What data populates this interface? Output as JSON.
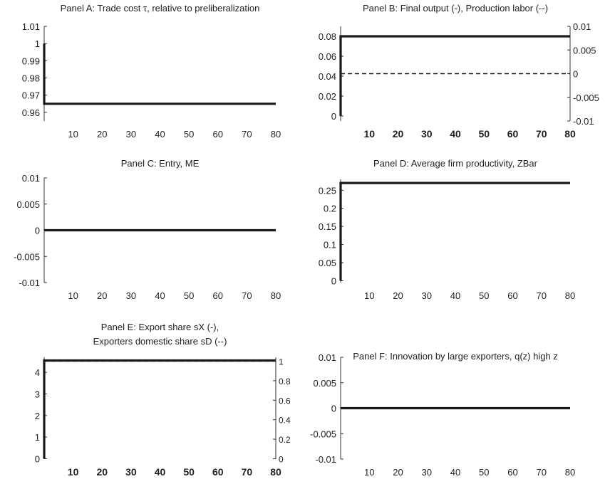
{
  "chart_data": [
    {
      "id": "A",
      "type": "line",
      "title": [
        "Panel A: Trade cost τ, relative to preliberalization"
      ],
      "xlabel": "",
      "ylabel": "",
      "xlim": [
        0,
        80
      ],
      "ylim": [
        0.955,
        1.01
      ],
      "x_ticks": [
        10,
        20,
        30,
        40,
        50,
        60,
        70,
        80
      ],
      "x_tick_bold": false,
      "y_ticks": [
        0.96,
        0.97,
        0.98,
        0.99,
        1,
        1.01
      ],
      "y_tick_labels": [
        "0.96",
        "0.97",
        "0.98",
        "0.99",
        "1",
        "1.01"
      ],
      "series": [
        {
          "axis": "left",
          "style": "solid",
          "x": [
            0,
            0,
            80
          ],
          "y": [
            1.0,
            0.965,
            0.965
          ]
        }
      ]
    },
    {
      "id": "B",
      "type": "line",
      "title": [
        "Panel B: Final output (-), Production labor (--)"
      ],
      "xlabel": "",
      "ylabel": "",
      "xlim": [
        0,
        80
      ],
      "ylim": [
        -0.005,
        0.09
      ],
      "x_ticks": [
        10,
        20,
        30,
        40,
        50,
        60,
        70,
        80
      ],
      "x_tick_bold": true,
      "y_ticks": [
        0,
        0.02,
        0.04,
        0.06,
        0.08
      ],
      "y_tick_labels": [
        "0",
        "0.02",
        "0.04",
        "0.06",
        "0.08"
      ],
      "y2lim": [
        -0.01,
        0.01
      ],
      "y2_ticks": [
        -0.01,
        -0.005,
        0,
        0.005,
        0.01
      ],
      "y2_tick_labels": [
        "-0.01",
        "-0.005",
        "0",
        "0.005",
        "0.01"
      ],
      "series": [
        {
          "axis": "left",
          "style": "solid",
          "x": [
            0,
            0,
            80
          ],
          "y": [
            0,
            0.08,
            0.08
          ]
        },
        {
          "axis": "right",
          "style": "dashed",
          "x": [
            0,
            80
          ],
          "y": [
            0,
            0
          ]
        }
      ]
    },
    {
      "id": "C",
      "type": "line",
      "title": [
        "Panel C: Entry, ME"
      ],
      "xlabel": "",
      "ylabel": "",
      "xlim": [
        0,
        80
      ],
      "ylim": [
        -0.01,
        0.01
      ],
      "x_ticks": [
        10,
        20,
        30,
        40,
        50,
        60,
        70,
        80
      ],
      "x_tick_bold": false,
      "y_ticks": [
        -0.01,
        -0.005,
        0,
        0.005,
        0.01
      ],
      "y_tick_labels": [
        "-0.01",
        "-0.005",
        "0",
        "0.005",
        "0.01"
      ],
      "series": [
        {
          "axis": "left",
          "style": "solid",
          "x": [
            0,
            80
          ],
          "y": [
            0,
            0
          ]
        }
      ]
    },
    {
      "id": "D",
      "type": "line",
      "title": [
        "Panel D: Average firm productivity, ZBar"
      ],
      "xlabel": "",
      "ylabel": "",
      "xlim": [
        0,
        80
      ],
      "ylim": [
        -0.005,
        0.28
      ],
      "x_ticks": [
        10,
        20,
        30,
        40,
        50,
        60,
        70,
        80
      ],
      "x_tick_bold": false,
      "y_ticks": [
        0,
        0.05,
        0.1,
        0.15,
        0.2,
        0.25
      ],
      "y_tick_labels": [
        "0",
        "0.05",
        "0.1",
        "0.15",
        "0.2",
        "0.25"
      ],
      "series": [
        {
          "axis": "left",
          "style": "solid",
          "x": [
            0,
            0,
            80
          ],
          "y": [
            0,
            0.27,
            0.27
          ]
        }
      ]
    },
    {
      "id": "E",
      "type": "line",
      "title": [
        "Panel E: Export share sX (-),",
        "Exporters domestic share sD (--)"
      ],
      "xlabel": "",
      "ylabel": "",
      "xlim": [
        0,
        80
      ],
      "ylim": [
        -0.02,
        4.7
      ],
      "x_ticks": [
        10,
        20,
        30,
        40,
        50,
        60,
        70,
        80
      ],
      "x_tick_bold": true,
      "y_ticks": [
        0,
        1,
        2,
        3,
        4
      ],
      "y_tick_labels": [
        "0",
        "1",
        "2",
        "3",
        "4"
      ],
      "y2lim": [
        -0.004,
        1.04
      ],
      "y2_ticks": [
        0,
        0.2,
        0.4,
        0.6,
        0.8,
        1
      ],
      "y2_tick_labels": [
        "0",
        "0.2",
        "0.4",
        "0.6",
        "0.8",
        "1"
      ],
      "series": [
        {
          "axis": "left",
          "style": "solid",
          "x": [
            0,
            0,
            80
          ],
          "y": [
            0,
            4.55,
            4.55
          ]
        },
        {
          "axis": "right",
          "style": "dashed",
          "x": [
            0,
            80
          ],
          "y": [
            1.0,
            1.0
          ]
        }
      ]
    },
    {
      "id": "F",
      "type": "line",
      "title": [
        "Panel F: Innovation by large exporters, q(z) high z"
      ],
      "xlabel": "",
      "ylabel": "",
      "xlim": [
        0,
        80
      ],
      "ylim": [
        -0.01,
        0.01
      ],
      "x_ticks": [
        10,
        20,
        30,
        40,
        50,
        60,
        70,
        80
      ],
      "x_tick_bold": false,
      "y_ticks": [
        -0.01,
        -0.005,
        0,
        0.005,
        0.01
      ],
      "y_tick_labels": [
        "-0.01",
        "-0.005",
        "0",
        "0.005",
        "0.01"
      ],
      "series": [
        {
          "axis": "left",
          "style": "solid",
          "x": [
            0,
            80
          ],
          "y": [
            0,
            0
          ]
        }
      ]
    }
  ]
}
